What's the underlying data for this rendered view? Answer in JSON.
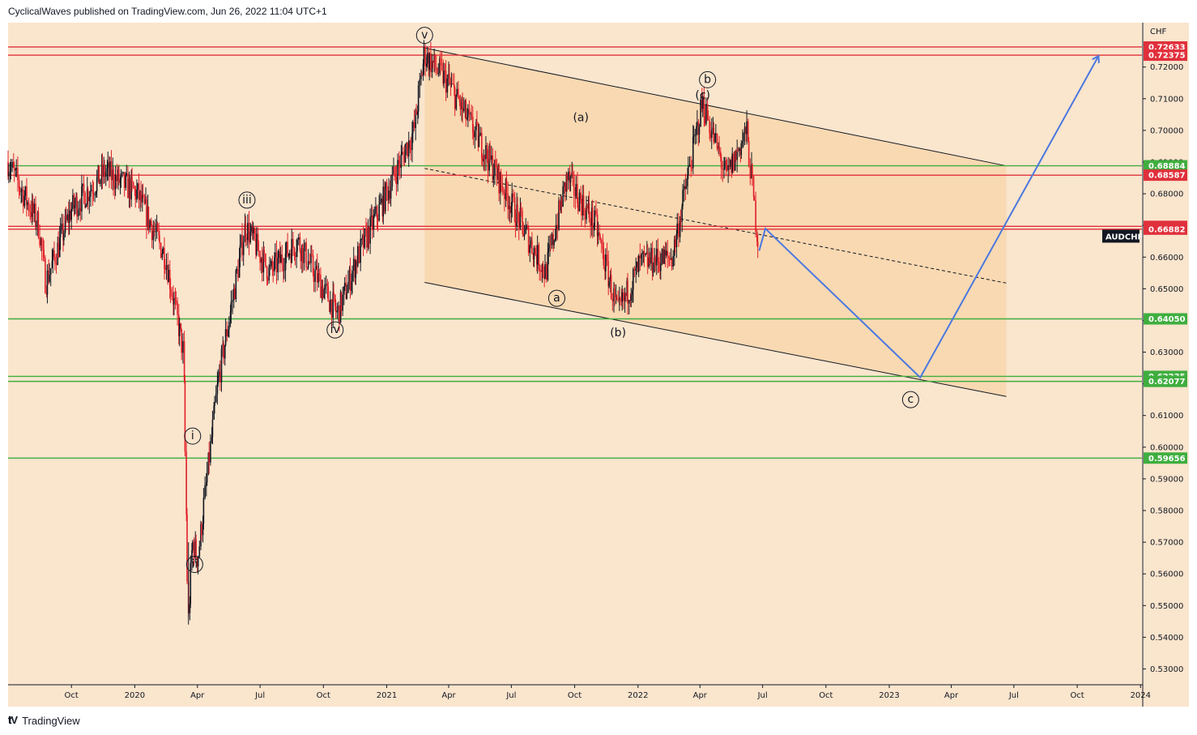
{
  "header": {
    "publisher_line": "CyclicalWaves published on TradingView.com, Jun 26, 2022 11:04 UTC+1"
  },
  "footer": {
    "brand": "TradingView",
    "logo_icon": "tradingview-logo-icon"
  },
  "colors": {
    "background": "#fae5cd",
    "channel_fill": "#f8d4a8",
    "resistance": "#e0303c",
    "support": "#3fae3f",
    "projection": "#4a78e0",
    "candle_up": "#131722",
    "candle_down": "#e0202a"
  },
  "chart_data": {
    "type": "candlestick",
    "symbol": "AUDCHF",
    "currency": "CHF",
    "price_axis": {
      "ylim": [
        0.525,
        0.734
      ],
      "ticks": [
        "0.53000",
        "0.54000",
        "0.55000",
        "0.56000",
        "0.57000",
        "0.58000",
        "0.59000",
        "0.60000",
        "0.61000",
        "0.62000",
        "0.63000",
        "0.64000",
        "0.65000",
        "0.66000",
        "0.67000",
        "0.68000",
        "0.69000",
        "0.70000",
        "0.71000",
        "0.72000"
      ]
    },
    "time_axis": {
      "ticks": [
        {
          "label": "Oct",
          "date": "2019-10-01"
        },
        {
          "label": "2020",
          "date": "2020-01-01"
        },
        {
          "label": "Apr",
          "date": "2020-04-01"
        },
        {
          "label": "Jul",
          "date": "2020-07-01"
        },
        {
          "label": "Oct",
          "date": "2020-10-01"
        },
        {
          "label": "2021",
          "date": "2021-01-01"
        },
        {
          "label": "Apr",
          "date": "2021-04-01"
        },
        {
          "label": "Jul",
          "date": "2021-07-01"
        },
        {
          "label": "Oct",
          "date": "2021-10-01"
        },
        {
          "label": "2022",
          "date": "2022-01-01"
        },
        {
          "label": "Apr",
          "date": "2022-04-01"
        },
        {
          "label": "Jul",
          "date": "2022-07-01"
        },
        {
          "label": "Oct",
          "date": "2022-10-01"
        },
        {
          "label": "2023",
          "date": "2023-01-01"
        },
        {
          "label": "Apr",
          "date": "2023-04-01"
        },
        {
          "label": "Jul",
          "date": "2023-07-01"
        },
        {
          "label": "Oct",
          "date": "2023-10-01"
        },
        {
          "label": "2024",
          "date": "2024-01-01"
        }
      ]
    },
    "price_path": [
      {
        "date": "2019-07-01",
        "price": 0.69
      },
      {
        "date": "2019-08-15",
        "price": 0.67
      },
      {
        "date": "2019-08-25",
        "price": 0.652
      },
      {
        "date": "2019-10-01",
        "price": 0.675
      },
      {
        "date": "2019-11-20",
        "price": 0.687
      },
      {
        "date": "2020-01-05",
        "price": 0.68
      },
      {
        "date": "2020-02-15",
        "price": 0.66
      },
      {
        "date": "2020-03-12",
        "price": 0.63
      },
      {
        "date": "2020-03-19",
        "price": 0.544
      },
      {
        "date": "2020-03-25",
        "price": 0.57
      },
      {
        "date": "2020-04-02",
        "price": 0.565
      },
      {
        "date": "2020-05-01",
        "price": 0.62
      },
      {
        "date": "2020-06-10",
        "price": 0.67
      },
      {
        "date": "2020-07-15",
        "price": 0.655
      },
      {
        "date": "2020-08-25",
        "price": 0.665
      },
      {
        "date": "2020-10-01",
        "price": 0.65
      },
      {
        "date": "2020-10-22",
        "price": 0.642
      },
      {
        "date": "2020-11-20",
        "price": 0.66
      },
      {
        "date": "2021-01-01",
        "price": 0.68
      },
      {
        "date": "2021-02-10",
        "price": 0.7
      },
      {
        "date": "2021-02-25",
        "price": 0.724
      },
      {
        "date": "2021-04-01",
        "price": 0.715
      },
      {
        "date": "2021-06-01",
        "price": 0.69
      },
      {
        "date": "2021-08-20",
        "price": 0.655
      },
      {
        "date": "2021-09-20",
        "price": 0.685
      },
      {
        "date": "2021-11-01",
        "price": 0.67
      },
      {
        "date": "2021-12-03",
        "price": 0.642
      },
      {
        "date": "2022-01-05",
        "price": 0.658
      },
      {
        "date": "2022-02-20",
        "price": 0.66
      },
      {
        "date": "2022-04-05",
        "price": 0.709
      },
      {
        "date": "2022-05-10",
        "price": 0.685
      },
      {
        "date": "2022-06-08",
        "price": 0.7
      },
      {
        "date": "2022-06-26",
        "price": 0.662
      }
    ],
    "horizontal_levels": [
      {
        "price": 0.72633,
        "label": "0.72633",
        "kind": "resistance"
      },
      {
        "price": 0.72375,
        "label": "0.72375",
        "kind": "resistance"
      },
      {
        "price": 0.68884,
        "label": "0.68884",
        "kind": "support"
      },
      {
        "price": 0.68587,
        "label": "0.68587",
        "kind": "resistance"
      },
      {
        "price": 0.6697,
        "label": "0.66970",
        "kind": "resistance"
      },
      {
        "price": 0.66882,
        "label": "0.66882",
        "kind": "resistance"
      },
      {
        "price": 0.6405,
        "label": "0.64050",
        "kind": "support"
      },
      {
        "price": 0.62235,
        "label": "0.62235",
        "kind": "support"
      },
      {
        "price": 0.62077,
        "label": "0.62077",
        "kind": "support"
      },
      {
        "price": 0.59656,
        "label": "0.59656",
        "kind": "support"
      }
    ],
    "channel": {
      "start_date": "2021-02-25",
      "end_date": "2023-06-20",
      "upper": [
        0.726,
        0.6888
      ],
      "middle": [
        0.688,
        0.6518
      ],
      "lower": [
        0.652,
        0.616
      ]
    },
    "projection_path": [
      {
        "date": "2022-06-26",
        "price": 0.662
      },
      {
        "date": "2022-07-05",
        "price": 0.669
      },
      {
        "date": "2023-02-15",
        "price": 0.622
      },
      {
        "date": "2023-11-01",
        "price": 0.7235
      }
    ],
    "wave_labels": [
      {
        "text": "v",
        "date": "2021-02-25",
        "price": 0.73,
        "circled": true
      },
      {
        "text": "iii",
        "date": "2020-06-12",
        "price": 0.678,
        "circled": true
      },
      {
        "text": "iv",
        "date": "2020-10-18",
        "price": 0.637,
        "circled": true
      },
      {
        "text": "i",
        "date": "2020-03-25",
        "price": 0.6035,
        "circled": true
      },
      {
        "text": "ii",
        "date": "2020-03-28",
        "price": 0.563,
        "circled": true
      },
      {
        "text": "a",
        "date": "2021-09-05",
        "price": 0.647,
        "circled": true
      },
      {
        "text": "b",
        "date": "2022-04-12",
        "price": 0.716,
        "circled": true
      },
      {
        "text": "c",
        "date": "2023-02-01",
        "price": 0.615,
        "circled": true
      },
      {
        "text": "(a)",
        "date": "2021-10-10",
        "price": 0.704,
        "circled": false
      },
      {
        "text": "(b)",
        "date": "2021-12-03",
        "price": 0.636,
        "circled": false
      },
      {
        "text": "(c)",
        "date": "2022-04-05",
        "price": 0.711,
        "circled": false
      }
    ],
    "current_price_label": "AUDCHF",
    "current_price": 0.662,
    "grid": false,
    "legend": "none"
  }
}
